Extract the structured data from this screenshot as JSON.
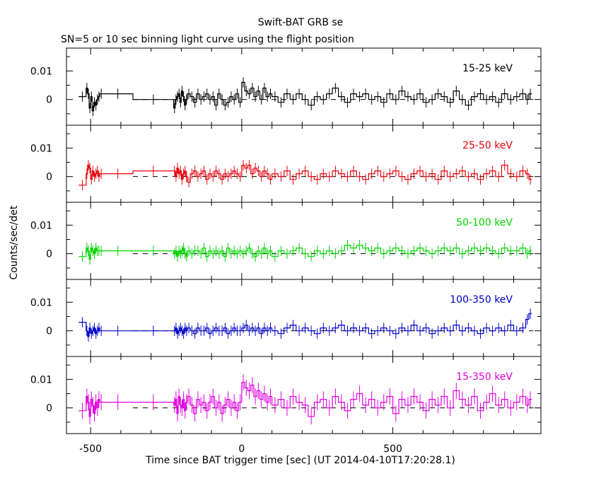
{
  "title": "Swift-BAT GRB se",
  "subtitle": "SN=5 or 10 sec binning light curve using the flight position",
  "colors": {
    "frame": "#000000",
    "band_15_25": "#000000",
    "band_25_50": "#e8000b",
    "band_50_100": "#00d400",
    "band_100_350": "#0000cc",
    "band_15_350": "#e000e0"
  },
  "chart_data": [
    {
      "type": "line",
      "title": "",
      "xlabel": "Time since BAT trigger time [sec] (UT 2014-04-10T17:20:28.1)",
      "ylabel": "Counts/sec/det",
      "xlim": [
        -580,
        990
      ],
      "ylim": [
        -0.009,
        0.018
      ],
      "x_ticks": [
        -500,
        0,
        500
      ],
      "y_ticks": [
        0,
        0.01
      ],
      "series": [
        {
          "name": "15-25 keV",
          "color_key": "band_15_25",
          "x": [
            -520,
            -515,
            -510,
            -505,
            -500,
            -495,
            -490,
            -485,
            -480,
            -475,
            -470,
            -460,
            -360,
            -225,
            -220,
            -215,
            -210,
            -205,
            -200,
            -195,
            -190,
            -185,
            -180,
            -170,
            -160,
            -150,
            -140,
            -130,
            -120,
            -110,
            -100,
            -90,
            -80,
            -70,
            -60,
            -50,
            -40,
            -30,
            -20,
            -10,
            0,
            10,
            20,
            30,
            40,
            50,
            60,
            70,
            80,
            90,
            100,
            120,
            140,
            160,
            180,
            200,
            220,
            240,
            260,
            280,
            300,
            320,
            340,
            360,
            380,
            400,
            420,
            440,
            460,
            480,
            500,
            520,
            540,
            560,
            580,
            600,
            620,
            640,
            660,
            680,
            700,
            720,
            740,
            760,
            780,
            800,
            820,
            840,
            860,
            880,
            900,
            920,
            940,
            950
          ],
          "y": [
            0.001,
            0.004,
            0.002,
            -0.003,
            0.001,
            -0.004,
            -0.001,
            -0.002,
            0.0,
            0.001,
            0.002,
            0.002,
            0.0,
            -0.003,
            0.0,
            0.001,
            0.002,
            -0.001,
            0.003,
            0.001,
            -0.002,
            0.0,
            0.002,
            0.001,
            -0.001,
            0.002,
            0.0,
            0.001,
            0.002,
            0.0,
            0.001,
            -0.002,
            0.002,
            0.0,
            -0.002,
            -0.001,
            0.001,
            0.0,
            0.002,
            -0.001,
            0.006,
            0.003,
            0.002,
            0.004,
            0.001,
            0.003,
            0.0,
            0.004,
            0.001,
            0.002,
            0.001,
            -0.001,
            0.002,
            0.0,
            0.002,
            0.0,
            -0.002,
            0.001,
            0.0,
            0.002,
            0.004,
            0.001,
            -0.001,
            0.002,
            0.001,
            0.002,
            0.0,
            0.001,
            -0.001,
            0.002,
            0.0,
            0.003,
            0.001,
            0.0,
            0.002,
            -0.001,
            0.0,
            0.002,
            0.001,
            -0.001,
            0.003,
            0.0,
            -0.002,
            0.001,
            0.002,
            0.0,
            0.001,
            -0.001,
            0.002,
            0.0,
            0.001,
            0.002,
            0.0,
            0.002
          ]
        },
        {
          "name": "25-50 keV",
          "color_key": "band_25_50",
          "x": [
            -520,
            -515,
            -510,
            -505,
            -500,
            -495,
            -490,
            -485,
            -480,
            -475,
            -470,
            -460,
            -360,
            -225,
            -220,
            -215,
            -210,
            -205,
            -200,
            -195,
            -190,
            -185,
            -180,
            -170,
            -160,
            -150,
            -140,
            -130,
            -120,
            -110,
            -100,
            -90,
            -80,
            -70,
            -60,
            -50,
            -40,
            -30,
            -20,
            -10,
            0,
            10,
            20,
            30,
            40,
            50,
            60,
            70,
            80,
            90,
            100,
            120,
            140,
            160,
            180,
            200,
            220,
            240,
            260,
            280,
            300,
            320,
            340,
            360,
            380,
            400,
            420,
            440,
            460,
            480,
            500,
            520,
            540,
            560,
            580,
            600,
            620,
            640,
            660,
            680,
            700,
            720,
            740,
            760,
            780,
            800,
            820,
            840,
            860,
            880,
            900,
            920,
            940,
            950
          ],
          "y": [
            -0.003,
            0.001,
            0.004,
            0.003,
            -0.001,
            0.002,
            0.0,
            0.001,
            0.002,
            0.0,
            0.001,
            0.001,
            0.002,
            0.002,
            0.0,
            0.003,
            0.001,
            0.002,
            -0.001,
            0.001,
            0.002,
            0.0,
            -0.002,
            0.001,
            0.002,
            0.0,
            0.001,
            0.002,
            -0.001,
            0.001,
            0.0,
            0.002,
            0.001,
            -0.001,
            0.001,
            0.0,
            0.001,
            0.002,
            0.001,
            0.0,
            0.004,
            0.003,
            0.004,
            0.001,
            0.003,
            0.002,
            0.0,
            0.002,
            0.001,
            -0.001,
            0.001,
            0.0,
            0.002,
            -0.001,
            0.001,
            0.002,
            0.0,
            -0.001,
            0.001,
            0.0,
            0.002,
            0.001,
            0.0,
            0.002,
            0.0,
            -0.001,
            0.001,
            0.002,
            0.0,
            0.001,
            0.002,
            0.0,
            -0.001,
            0.001,
            0.002,
            0.0,
            0.001,
            -0.001,
            0.002,
            0.0,
            0.001,
            0.002,
            0.0,
            0.001,
            -0.001,
            0.001,
            0.002,
            0.0,
            0.004,
            0.001,
            0.0,
            0.002,
            0.001,
            -0.001
          ]
        },
        {
          "name": "50-100 keV",
          "color_key": "band_50_100",
          "x": [
            -520,
            -515,
            -510,
            -505,
            -500,
            -495,
            -490,
            -485,
            -480,
            -475,
            -470,
            -460,
            -360,
            -225,
            -220,
            -215,
            -210,
            -205,
            -200,
            -195,
            -190,
            -185,
            -180,
            -170,
            -160,
            -150,
            -140,
            -130,
            -120,
            -110,
            -100,
            -90,
            -80,
            -70,
            -60,
            -50,
            -40,
            -30,
            -20,
            -10,
            0,
            10,
            20,
            30,
            40,
            50,
            60,
            70,
            80,
            90,
            100,
            120,
            140,
            160,
            180,
            200,
            220,
            240,
            260,
            280,
            300,
            320,
            340,
            360,
            380,
            400,
            420,
            440,
            460,
            480,
            500,
            520,
            540,
            560,
            580,
            600,
            620,
            640,
            660,
            680,
            700,
            720,
            740,
            760,
            780,
            800,
            820,
            840,
            860,
            880,
            900,
            920,
            940,
            950
          ],
          "y": [
            -0.001,
            0.002,
            0.001,
            -0.002,
            0.002,
            0.001,
            0.0,
            0.002,
            0.001,
            0.001,
            0.001,
            0.001,
            0.001,
            0.0,
            0.001,
            -0.001,
            0.001,
            0.0,
            0.001,
            0.002,
            0.0,
            -0.001,
            0.001,
            0.0,
            0.001,
            0.001,
            0.0,
            0.002,
            -0.001,
            0.001,
            0.0,
            0.001,
            0.0,
            0.001,
            -0.001,
            0.002,
            0.0,
            0.001,
            0.0,
            0.001,
            0.0,
            0.001,
            0.002,
            0.0,
            -0.001,
            0.001,
            0.0,
            0.002,
            0.0,
            0.001,
            -0.001,
            0.001,
            0.0,
            0.001,
            0.002,
            0.0,
            -0.001,
            0.001,
            0.0,
            0.001,
            0.0,
            0.001,
            0.003,
            0.002,
            0.003,
            0.002,
            0.001,
            0.002,
            0.0,
            0.001,
            0.002,
            0.001,
            0.0,
            0.001,
            0.002,
            0.001,
            0.0,
            0.001,
            0.002,
            0.001,
            0.002,
            0.0,
            0.001,
            0.002,
            0.001,
            0.002,
            0.001,
            0.0,
            0.002,
            0.001,
            0.001,
            0.002,
            0.0,
            0.001
          ]
        },
        {
          "name": "100-350 keV",
          "color_key": "band_100_350",
          "x": [
            -520,
            -515,
            -510,
            -505,
            -500,
            -495,
            -490,
            -485,
            -480,
            -475,
            -470,
            -460,
            -360,
            -225,
            -220,
            -215,
            -210,
            -205,
            -200,
            -195,
            -190,
            -185,
            -180,
            -170,
            -160,
            -150,
            -140,
            -130,
            -120,
            -110,
            -100,
            -90,
            -80,
            -70,
            -60,
            -50,
            -40,
            -30,
            -20,
            -10,
            0,
            10,
            20,
            30,
            40,
            50,
            60,
            70,
            80,
            90,
            100,
            120,
            140,
            160,
            180,
            200,
            220,
            240,
            260,
            280,
            300,
            320,
            340,
            360,
            380,
            400,
            420,
            440,
            460,
            480,
            500,
            520,
            540,
            560,
            580,
            600,
            620,
            640,
            660,
            680,
            700,
            720,
            740,
            760,
            780,
            800,
            820,
            840,
            860,
            880,
            900,
            920,
            940,
            950
          ],
          "y": [
            0.003,
            0.0,
            -0.002,
            0.001,
            -0.001,
            0.0,
            0.001,
            -0.001,
            0.0,
            0.001,
            0.0,
            0.0,
            0.0,
            0.0,
            0.001,
            -0.001,
            0.0,
            0.001,
            0.0,
            -0.001,
            0.001,
            0.0,
            0.001,
            0.0,
            -0.001,
            0.001,
            0.0,
            0.0,
            0.001,
            -0.001,
            0.0,
            0.001,
            0.0,
            0.0,
            0.001,
            -0.001,
            0.0,
            0.001,
            0.0,
            0.0,
            0.001,
            0.002,
            0.0,
            0.001,
            0.0,
            0.001,
            -0.001,
            0.001,
            0.0,
            0.001,
            0.0,
            -0.001,
            0.001,
            0.002,
            0.0,
            0.001,
            0.0,
            -0.001,
            0.001,
            0.0,
            0.001,
            0.002,
            0.0,
            0.001,
            0.0,
            0.001,
            -0.001,
            0.0,
            0.001,
            0.0,
            -0.001,
            0.001,
            0.0,
            0.002,
            0.0,
            0.001,
            -0.001,
            0.0,
            0.001,
            0.0,
            0.002,
            0.0,
            0.001,
            0.0,
            -0.001,
            0.001,
            0.0,
            0.001,
            0.0,
            0.002,
            0.0,
            0.001,
            0.004,
            0.006
          ]
        },
        {
          "name": "15-350 keV",
          "color_key": "band_15_350",
          "x": [
            -520,
            -515,
            -510,
            -505,
            -500,
            -495,
            -490,
            -485,
            -480,
            -475,
            -470,
            -460,
            -360,
            -225,
            -220,
            -215,
            -210,
            -205,
            -200,
            -195,
            -190,
            -185,
            -180,
            -170,
            -160,
            -150,
            -140,
            -130,
            -120,
            -110,
            -100,
            -90,
            -80,
            -70,
            -60,
            -50,
            -40,
            -30,
            -20,
            -10,
            0,
            10,
            20,
            30,
            40,
            50,
            60,
            70,
            80,
            90,
            100,
            120,
            140,
            160,
            180,
            200,
            220,
            240,
            260,
            280,
            300,
            320,
            340,
            360,
            380,
            400,
            420,
            440,
            460,
            480,
            500,
            520,
            540,
            560,
            580,
            600,
            620,
            640,
            660,
            680,
            700,
            720,
            740,
            760,
            780,
            800,
            820,
            840,
            860,
            880,
            900,
            920,
            940,
            950
          ],
          "y": [
            -0.001,
            0.004,
            0.002,
            -0.003,
            0.003,
            0.001,
            -0.002,
            0.002,
            0.0,
            0.003,
            0.002,
            0.002,
            0.002,
            0.001,
            0.003,
            -0.002,
            0.004,
            0.001,
            0.0,
            0.003,
            -0.001,
            0.002,
            0.004,
            0.001,
            -0.002,
            0.003,
            0.001,
            0.002,
            -0.001,
            0.002,
            0.004,
            0.0,
            0.002,
            -0.002,
            0.001,
            0.003,
            0.0,
            0.002,
            -0.001,
            0.002,
            0.009,
            0.007,
            0.006,
            0.008,
            0.004,
            0.006,
            0.003,
            0.005,
            0.002,
            0.004,
            0.001,
            0.003,
            0.0,
            0.004,
            0.002,
            0.001,
            -0.003,
            0.002,
            0.003,
            0.0,
            0.004,
            0.002,
            -0.001,
            0.003,
            0.005,
            0.001,
            0.003,
            0.0,
            0.002,
            0.004,
            -0.002,
            0.003,
            0.001,
            0.004,
            0.002,
            -0.001,
            0.003,
            0.001,
            0.004,
            0.0,
            0.006,
            0.003,
            0.001,
            0.004,
            -0.001,
            0.002,
            0.005,
            0.001,
            0.003,
            0.0,
            0.002,
            0.004,
            0.001,
            0.003
          ]
        }
      ]
    }
  ]
}
